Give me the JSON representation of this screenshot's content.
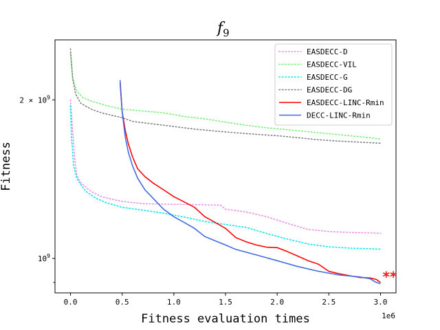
{
  "chart_data": {
    "type": "line",
    "title": "f",
    "title_sub": "9",
    "xlabel": "Fitness evaluation times",
    "ylabel": "Fitness",
    "x_offset_label": "1e6",
    "xlim": [
      -0.15,
      3.15
    ],
    "ylim": [
      860000000,
      2600000000
    ],
    "yscale": "log",
    "xticks": [
      {
        "value": 0.0,
        "label": "0.0"
      },
      {
        "value": 0.5,
        "label": "0.5"
      },
      {
        "value": 1.0,
        "label": "1.0"
      },
      {
        "value": 1.5,
        "label": "1.5"
      },
      {
        "value": 2.0,
        "label": "2.0"
      },
      {
        "value": 2.5,
        "label": "2.5"
      },
      {
        "value": 3.0,
        "label": "3.0"
      }
    ],
    "yticks_major": [
      {
        "value": 1000000000,
        "label": "10",
        "exp": "9"
      },
      {
        "value": 2000000000,
        "label": "2 × 10",
        "exp": "9"
      }
    ],
    "yticks_minor": [
      900000000
    ],
    "legend_position": "top-right",
    "annotation": {
      "text": "**",
      "color": "#e41a1c",
      "x": 3.02,
      "y": 920000000
    },
    "series": [
      {
        "name": "EASDECC-D",
        "color": "#e88ee8",
        "style": "dotted",
        "points": [
          [
            0,
            2000000000
          ],
          [
            0.02,
            1750000000
          ],
          [
            0.04,
            1550000000
          ],
          [
            0.06,
            1440000000
          ],
          [
            0.1,
            1390000000
          ],
          [
            0.2,
            1340000000
          ],
          [
            0.3,
            1310000000
          ],
          [
            0.4,
            1295000000
          ],
          [
            0.5,
            1283000000
          ],
          [
            0.7,
            1270000000
          ],
          [
            0.9,
            1268000000
          ],
          [
            1.1,
            1266000000
          ],
          [
            1.3,
            1264000000
          ],
          [
            1.45,
            1262000000
          ],
          [
            1.5,
            1240000000
          ],
          [
            1.7,
            1225000000
          ],
          [
            1.9,
            1200000000
          ],
          [
            2.1,
            1165000000
          ],
          [
            2.3,
            1135000000
          ],
          [
            2.5,
            1125000000
          ],
          [
            2.7,
            1120000000
          ],
          [
            2.9,
            1118000000
          ],
          [
            3.0,
            1116000000
          ]
        ]
      },
      {
        "name": "EASDECC-VIL",
        "color": "#77ee77",
        "style": "dotted",
        "points": [
          [
            0,
            2450000000
          ],
          [
            0.02,
            2200000000
          ],
          [
            0.06,
            2080000000
          ],
          [
            0.12,
            2020000000
          ],
          [
            0.2,
            1990000000
          ],
          [
            0.35,
            1950000000
          ],
          [
            0.5,
            1920000000
          ],
          [
            0.7,
            1905000000
          ],
          [
            0.9,
            1890000000
          ],
          [
            1.1,
            1860000000
          ],
          [
            1.3,
            1840000000
          ],
          [
            1.5,
            1815000000
          ],
          [
            1.7,
            1790000000
          ],
          [
            1.9,
            1770000000
          ],
          [
            2.1,
            1755000000
          ],
          [
            2.3,
            1740000000
          ],
          [
            2.5,
            1725000000
          ],
          [
            2.7,
            1710000000
          ],
          [
            2.9,
            1695000000
          ],
          [
            3.0,
            1685000000
          ]
        ]
      },
      {
        "name": "EASDECC-G",
        "color": "#00e5ee",
        "style": "dotted",
        "points": [
          [
            0,
            1950000000
          ],
          [
            0.01,
            1700000000
          ],
          [
            0.03,
            1500000000
          ],
          [
            0.06,
            1420000000
          ],
          [
            0.1,
            1380000000
          ],
          [
            0.15,
            1340000000
          ],
          [
            0.25,
            1300000000
          ],
          [
            0.35,
            1275000000
          ],
          [
            0.5,
            1250000000
          ],
          [
            0.7,
            1235000000
          ],
          [
            0.9,
            1218000000
          ],
          [
            1.1,
            1198000000
          ],
          [
            1.3,
            1175000000
          ],
          [
            1.5,
            1160000000
          ],
          [
            1.7,
            1145000000
          ],
          [
            1.9,
            1115000000
          ],
          [
            2.1,
            1088000000
          ],
          [
            2.3,
            1065000000
          ],
          [
            2.5,
            1052000000
          ],
          [
            2.7,
            1046000000
          ],
          [
            2.9,
            1043000000
          ],
          [
            3.0,
            1041000000
          ]
        ]
      },
      {
        "name": "EASDECC-DG",
        "color": "#7f7f7f",
        "style": "dotted",
        "points": [
          [
            0,
            2500000000
          ],
          [
            0.02,
            2200000000
          ],
          [
            0.05,
            2050000000
          ],
          [
            0.1,
            1970000000
          ],
          [
            0.2,
            1920000000
          ],
          [
            0.3,
            1890000000
          ],
          [
            0.5,
            1850000000
          ],
          [
            0.6,
            1820000000
          ],
          [
            0.8,
            1800000000
          ],
          [
            1.0,
            1780000000
          ],
          [
            1.2,
            1760000000
          ],
          [
            1.4,
            1745000000
          ],
          [
            1.6,
            1732000000
          ],
          [
            1.8,
            1720000000
          ],
          [
            2.0,
            1710000000
          ],
          [
            2.2,
            1695000000
          ],
          [
            2.4,
            1680000000
          ],
          [
            2.6,
            1670000000
          ],
          [
            2.8,
            1662000000
          ],
          [
            3.0,
            1655000000
          ]
        ]
      },
      {
        "name": "EASDECC-LINC-Rmin",
        "color": "#ff0000",
        "style": "solid",
        "points": [
          [
            0.48,
            2150000000
          ],
          [
            0.5,
            1900000000
          ],
          [
            0.53,
            1750000000
          ],
          [
            0.56,
            1650000000
          ],
          [
            0.6,
            1560000000
          ],
          [
            0.65,
            1480000000
          ],
          [
            0.72,
            1430000000
          ],
          [
            0.8,
            1390000000
          ],
          [
            0.9,
            1350000000
          ],
          [
            1.0,
            1310000000
          ],
          [
            1.1,
            1280000000
          ],
          [
            1.2,
            1250000000
          ],
          [
            1.3,
            1200000000
          ],
          [
            1.4,
            1170000000
          ],
          [
            1.5,
            1140000000
          ],
          [
            1.6,
            1095000000
          ],
          [
            1.7,
            1075000000
          ],
          [
            1.8,
            1060000000
          ],
          [
            1.9,
            1050000000
          ],
          [
            2.0,
            1048000000
          ],
          [
            2.1,
            1030000000
          ],
          [
            2.2,
            1010000000
          ],
          [
            2.3,
            990000000
          ],
          [
            2.4,
            975000000
          ],
          [
            2.5,
            945000000
          ],
          [
            2.6,
            935000000
          ],
          [
            2.7,
            927000000
          ],
          [
            2.8,
            920000000
          ],
          [
            2.9,
            918000000
          ],
          [
            2.96,
            912000000
          ],
          [
            3.0,
            900000000
          ]
        ]
      },
      {
        "name": "DECC-LINC-Rmin",
        "color": "#4169e1",
        "style": "solid",
        "points": [
          [
            0.48,
            2180000000
          ],
          [
            0.5,
            1900000000
          ],
          [
            0.53,
            1700000000
          ],
          [
            0.56,
            1590000000
          ],
          [
            0.6,
            1500000000
          ],
          [
            0.65,
            1420000000
          ],
          [
            0.72,
            1350000000
          ],
          [
            0.8,
            1300000000
          ],
          [
            0.9,
            1240000000
          ],
          [
            1.0,
            1200000000
          ],
          [
            1.1,
            1170000000
          ],
          [
            1.2,
            1140000000
          ],
          [
            1.3,
            1100000000
          ],
          [
            1.4,
            1080000000
          ],
          [
            1.5,
            1060000000
          ],
          [
            1.6,
            1040000000
          ],
          [
            1.8,
            1015000000
          ],
          [
            2.0,
            990000000
          ],
          [
            2.2,
            965000000
          ],
          [
            2.4,
            945000000
          ],
          [
            2.6,
            930000000
          ],
          [
            2.8,
            922000000
          ],
          [
            2.9,
            915000000
          ],
          [
            2.95,
            902000000
          ],
          [
            3.0,
            895000000
          ]
        ]
      }
    ]
  }
}
